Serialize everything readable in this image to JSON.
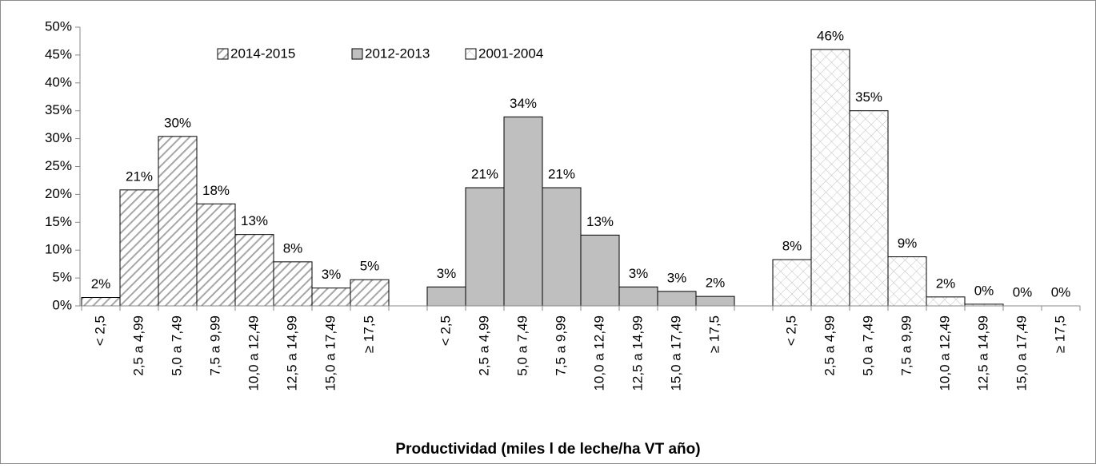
{
  "chart_data": {
    "type": "bar",
    "x_label": "Productividad (miles l de leche/ha VT año)",
    "categories": [
      "< 2,5",
      "2,5 a 4,99",
      "5,0 a 7,49",
      "7,5 a 9,99",
      "10,0 a 12,49",
      "12,5 a 14,99",
      "15,0 a 17,49",
      "≥ 17,5",
      null,
      "< 2,5",
      "2,5 a 4,99",
      "5,0 a 7,49",
      "7,5 a 9,99",
      "10,0 a 12,49",
      "12,5 a 14,99",
      "15,0 a 17,49",
      "≥ 17,5",
      null,
      "< 2,5",
      "2,5 a 4,99",
      "5,0 a 7,49",
      "7,5 a 9,99",
      "10,0 a 12,49",
      "12,5 a 14,99",
      "15,0 a 17,49",
      "≥ 17,5"
    ],
    "series": [
      {
        "name": "2014-2015",
        "color": "#a6a6a6",
        "pattern": "diagonal",
        "values": [
          1.5,
          20.8,
          30.4,
          18.3,
          12.8,
          7.9,
          3.2,
          4.7,
          null,
          null,
          null,
          null,
          null,
          null,
          null,
          null,
          null,
          null,
          null,
          null,
          null,
          null,
          null,
          null,
          null,
          null
        ],
        "value_labels": [
          "2%",
          "21%",
          "30%",
          "18%",
          "13%",
          "8%",
          "3%",
          "5%",
          null,
          null,
          null,
          null,
          null,
          null,
          null,
          null,
          null,
          null,
          null,
          null,
          null,
          null,
          null,
          null,
          null,
          null
        ]
      },
      {
        "name": "2012-2013",
        "color": "#bfbfbf",
        "pattern": "solid",
        "values": [
          null,
          null,
          null,
          null,
          null,
          null,
          null,
          null,
          null,
          3.4,
          21.2,
          33.9,
          21.2,
          12.7,
          3.4,
          2.6,
          1.7,
          null,
          null,
          null,
          null,
          null,
          null,
          null,
          null,
          null
        ],
        "value_labels": [
          null,
          null,
          null,
          null,
          null,
          null,
          null,
          null,
          null,
          "3%",
          "21%",
          "34%",
          "21%",
          "13%",
          "3%",
          "3%",
          "2%",
          null,
          null,
          null,
          null,
          null,
          null,
          null,
          null,
          null
        ]
      },
      {
        "name": "2001-2004",
        "color": "#bfbfbf",
        "pattern": "crosshatch",
        "values": [
          null,
          null,
          null,
          null,
          null,
          null,
          null,
          null,
          null,
          null,
          null,
          null,
          null,
          null,
          null,
          null,
          null,
          null,
          8.3,
          46,
          35,
          8.8,
          1.6,
          0.3,
          0,
          0
        ],
        "value_labels": [
          null,
          null,
          null,
          null,
          null,
          null,
          null,
          null,
          null,
          null,
          null,
          null,
          null,
          null,
          null,
          null,
          null,
          null,
          "8%",
          "46%",
          "35%",
          "9%",
          "2%",
          "0%",
          "0%",
          "0%"
        ]
      }
    ],
    "ylim": [
      0,
      50
    ],
    "yticks": [
      {
        "value": 0,
        "label": "0%"
      },
      {
        "value": 5,
        "label": "5%"
      },
      {
        "value": 10,
        "label": "10%"
      },
      {
        "value": 15,
        "label": "15%"
      },
      {
        "value": 20,
        "label": "20%"
      },
      {
        "value": 25,
        "label": "25%"
      },
      {
        "value": 30,
        "label": "30%"
      },
      {
        "value": 35,
        "label": "35%"
      },
      {
        "value": 40,
        "label": "40%"
      },
      {
        "value": 45,
        "label": "45%"
      },
      {
        "value": 50,
        "label": "50%"
      }
    ],
    "legend": "top"
  }
}
